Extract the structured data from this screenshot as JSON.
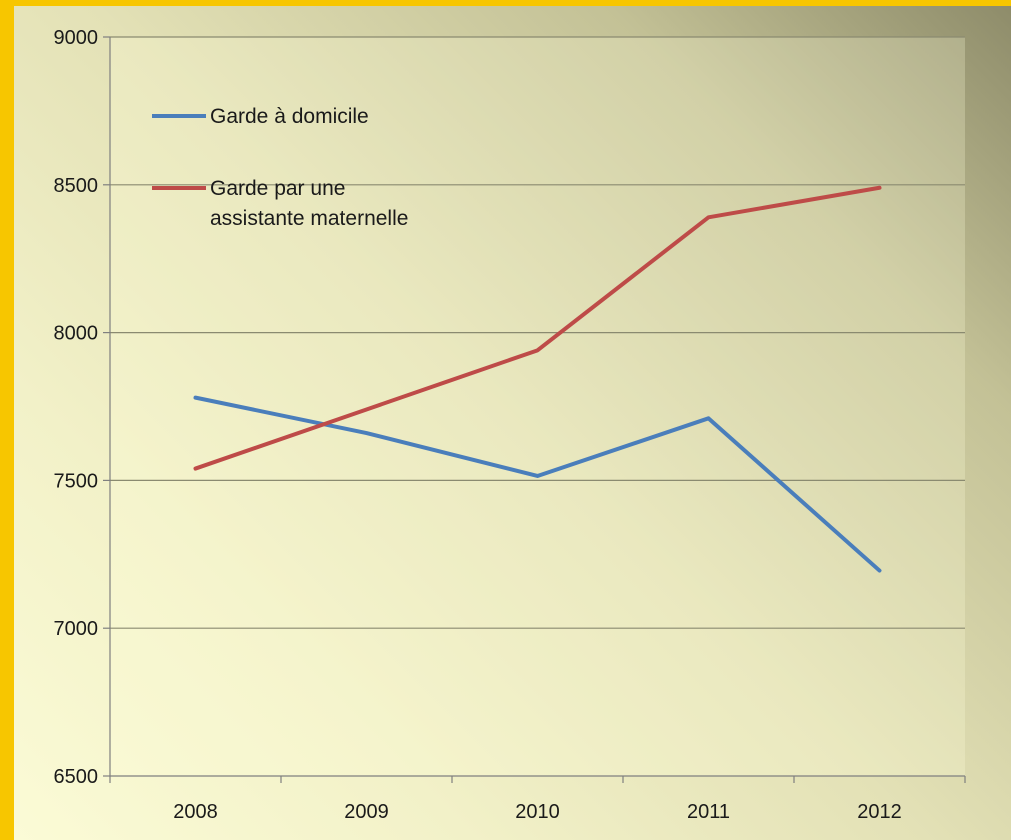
{
  "chart_data": {
    "type": "line",
    "x": [
      "2008",
      "2009",
      "2010",
      "2011",
      "2012"
    ],
    "ylim": [
      6500,
      9000
    ],
    "yticks": [
      6500,
      7000,
      7500,
      8000,
      8500,
      9000
    ],
    "grid": true,
    "legend_position": "top-left",
    "series": [
      {
        "name": "Garde à domicile",
        "color": "#4a7ebb",
        "values": [
          7780,
          7660,
          7515,
          7710,
          7195
        ]
      },
      {
        "name": "Garde par une assistante maternelle",
        "name_lines": [
          "Garde par une",
          "assistante maternelle"
        ],
        "color": "#be4b48",
        "values": [
          7540,
          7740,
          7940,
          8390,
          8490
        ]
      }
    ]
  }
}
